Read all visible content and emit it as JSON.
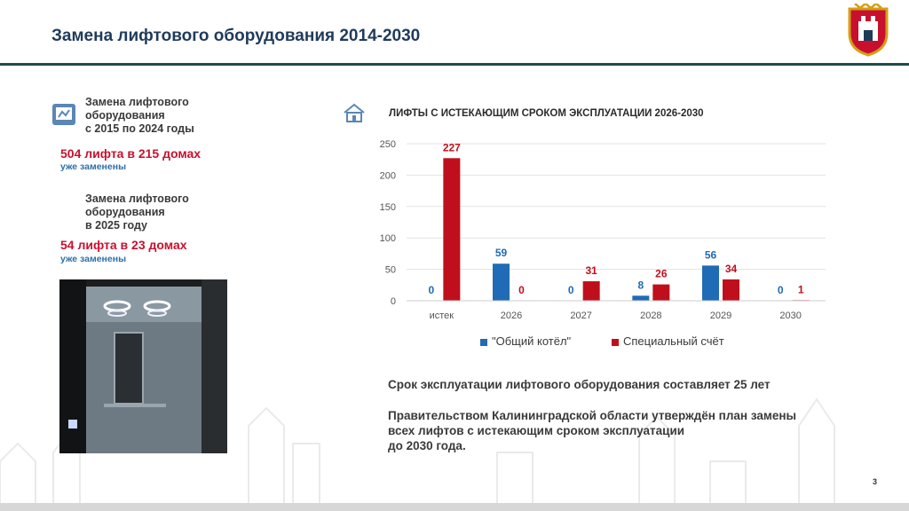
{
  "header": {
    "title": "Замена лифтового оборудования 2014-2030",
    "crest_icon": "kaliningrad-coat-of-arms"
  },
  "left_panel": {
    "block1": {
      "caption_lines": [
        "Замена лифтового",
        "оборудования",
        "с 2015 по 2024 годы"
      ],
      "highlight": "504 лифта в 215 домах",
      "status": "уже заменены"
    },
    "block2": {
      "caption_lines": [
        "Замена лифтового",
        "оборудования",
        "в 2025 году"
      ],
      "highlight": "54 лифта в 23 домах",
      "status": "уже заменены"
    }
  },
  "page_number": "3",
  "colors": {
    "blue": "#1f6bb5",
    "red": "#c00f1c",
    "title": "#1f3b5a",
    "accent_red": "#c8102e"
  },
  "chart_data": {
    "type": "bar",
    "title": "ЛИФТЫ С ИСТЕКАЮЩИМ СРОКОМ ЭКСПЛУАТАЦИИ 2026-2030",
    "categories": [
      "истек",
      "2026",
      "2027",
      "2028",
      "2029",
      "2030"
    ],
    "series": [
      {
        "name": "\"Общий котёл\"",
        "values": [
          0,
          59,
          0,
          8,
          56,
          0
        ],
        "color": "#1f6bb5"
      },
      {
        "name": "Специальный счёт",
        "values": [
          227,
          0,
          31,
          26,
          34,
          1
        ],
        "color": "#c00f1c"
      }
    ],
    "ylim": [
      0,
      250
    ],
    "yticks": [
      0,
      50,
      100,
      150,
      200,
      250
    ],
    "grid": true,
    "legend": "bottom"
  },
  "notes": {
    "line1": "Срок эксплуатации лифтового оборудования составляет 25 лет",
    "line2": "Правительством Калининградской области утверждён план замены",
    "line3": "всех лифтов с истекающим сроком эксплуатации",
    "line4": "до 2030 года."
  }
}
